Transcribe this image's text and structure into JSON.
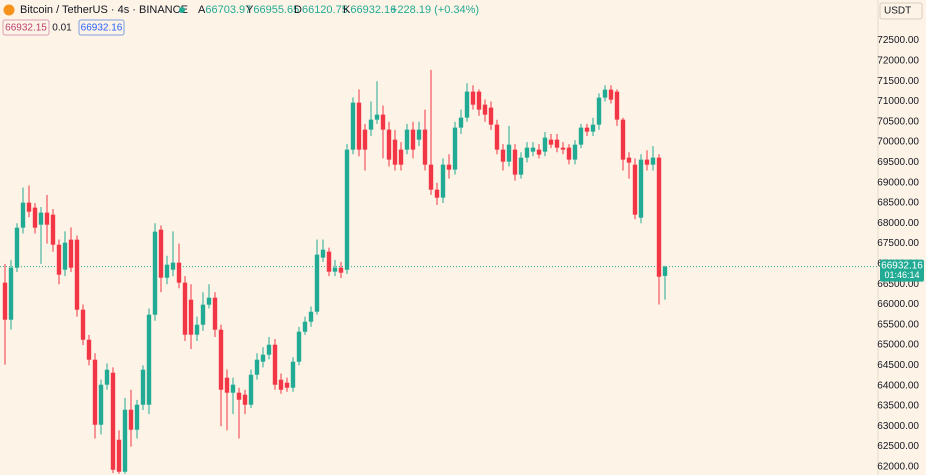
{
  "chart_data": {
    "type": "candlestick",
    "header": {
      "symbol": "Bitcoin / TetherUS · 4s · BINANCE",
      "open_label": "A",
      "high_label": "Y",
      "low_label": "D",
      "close_label": "K",
      "change": "+228.19 (+0.34%)"
    },
    "order_panel": {
      "sell": "66932.15",
      "spread": "0.01",
      "buy": "66932.16"
    },
    "currency": "USDT",
    "countdown": "01:46:14",
    "up_color": "#22ab94",
    "down_color": "#f23645",
    "last_price_line": true,
    "grid": false,
    "ylim": [
      61800,
      73500
    ],
    "yticks": [
      {
        "value": 62000,
        "label": "62000.00"
      },
      {
        "value": 62500,
        "label": "62500.00"
      },
      {
        "value": 63000,
        "label": "63000.00"
      },
      {
        "value": 63500,
        "label": "63500.00"
      },
      {
        "value": 64000,
        "label": "64000.00"
      },
      {
        "value": 64500,
        "label": "64500.00"
      },
      {
        "value": 65000,
        "label": "65000.00"
      },
      {
        "value": 65500,
        "label": "65500.00"
      },
      {
        "value": 66000,
        "label": "66000.00"
      },
      {
        "value": 66500,
        "label": "66500.00"
      },
      {
        "value": 67000,
        "label": "67000.00"
      },
      {
        "value": 67500,
        "label": "67500.00"
      },
      {
        "value": 68000,
        "label": "68000.00"
      },
      {
        "value": 68500,
        "label": "68500.00"
      },
      {
        "value": 69000,
        "label": "69000.00"
      },
      {
        "value": 69500,
        "label": "69500.00"
      },
      {
        "value": 70000,
        "label": "70000.00"
      },
      {
        "value": 70500,
        "label": "70500.00"
      },
      {
        "value": 71000,
        "label": "71000.00"
      },
      {
        "value": 71500,
        "label": "71500.00"
      },
      {
        "value": 72000,
        "label": "72000.00"
      },
      {
        "value": 72500,
        "label": "72500.00"
      }
    ],
    "open": [
      66537,
      65625,
      66906,
      67892,
      68508,
      68385,
      67966,
      68262,
      68212,
      67473,
      66857,
      67596,
      67596,
      65872,
      65132,
      64640,
      63038,
      64024,
      64319,
      62668,
      61880,
      63408,
      62915,
      63531,
      63531,
      65748,
      67843,
      66660,
      66857,
      67030,
      66537,
      66118,
      65256,
      65502,
      65995,
      66167,
      65379,
      64196,
      63827,
      63827,
      63778,
      63531,
      64270,
      64590,
      64763,
      65009,
      64147,
      64073,
      63950,
      64590,
      65329,
      65576,
      65822,
      67153,
      67301,
      66808,
      66906,
      66857,
      69814,
      70972,
      70307,
      70307,
      70553,
      70676,
      70307,
      70060,
      69814,
      69814,
      70307,
      70060,
      70307,
      69444,
      68828,
      68631,
      69444,
      69321,
      70356,
      70602,
      71243,
      71243,
      70922,
      70849,
      70430,
      69814,
      69518,
      69814,
      69198,
      69617,
      69765,
      69814,
      69765,
      70060,
      70060,
      69863,
      69863,
      69568,
      69937,
      70356,
      70258,
      70430,
      71095,
      71292,
      71243,
      70553,
      69617,
      69444,
      68138,
      69568,
      69444,
      69617,
      66703.97
    ],
    "high": [
      67000,
      67100,
      68000,
      68880,
      68930,
      68500,
      68400,
      68700,
      68350,
      67600,
      67800,
      67900,
      67700,
      66000,
      65250,
      64800,
      64150,
      64550,
      64450,
      62900,
      63700,
      63900,
      63650,
      64500,
      65900,
      68000,
      67950,
      67200,
      67800,
      67500,
      66700,
      66500,
      65700,
      66300,
      66500,
      66300,
      65500,
      64400,
      64200,
      63950,
      63900,
      64400,
      64800,
      64950,
      65200,
      65150,
      64300,
      64200,
      64700,
      65450,
      65700,
      65950,
      67600,
      67600,
      67400,
      67100,
      67050,
      69950,
      71100,
      71300,
      70450,
      71000,
      71500,
      70900,
      70500,
      70300,
      70000,
      70450,
      70500,
      70500,
      70800,
      71780,
      69000,
      69600,
      69700,
      70500,
      70800,
      71450,
      71400,
      71300,
      71050,
      71000,
      70550,
      69950,
      70400,
      69950,
      69750,
      70000,
      70000,
      69950,
      70250,
      70200,
      70200,
      70000,
      69950,
      70050,
      70450,
      70450,
      70600,
      71200,
      71400,
      71400,
      71300,
      70600,
      69750,
      69600,
      69700,
      69800,
      69900,
      69700,
      66955.65
    ],
    "low": [
      64520,
      65380,
      66800,
      67750,
      68150,
      67750,
      67000,
      67500,
      67300,
      66500,
      66700,
      66800,
      65700,
      65000,
      64500,
      62700,
      62800,
      63900,
      61850,
      61830,
      61830,
      62500,
      62700,
      63400,
      63300,
      65600,
      66300,
      66500,
      66700,
      66400,
      65100,
      64900,
      65100,
      65350,
      65900,
      65200,
      63000,
      62900,
      63300,
      62700,
      63300,
      63450,
      64150,
      64450,
      64650,
      63900,
      63800,
      63850,
      63850,
      64500,
      65250,
      65450,
      65750,
      67050,
      66700,
      66700,
      66650,
      66750,
      69700,
      69650,
      69300,
      70150,
      70450,
      69600,
      69400,
      69300,
      69300,
      69700,
      69600,
      69900,
      69300,
      68700,
      68450,
      68500,
      69100,
      69200,
      70200,
      70500,
      70800,
      70650,
      70500,
      70300,
      69700,
      69300,
      69400,
      69050,
      69100,
      69500,
      69650,
      69600,
      69650,
      69850,
      69750,
      69700,
      69450,
      69450,
      69850,
      70150,
      70150,
      70300,
      71000,
      70950,
      70400,
      69300,
      69100,
      68100,
      68000,
      69300,
      69300,
      66000,
      66120.75
    ],
    "close": [
      65625,
      66906,
      67892,
      68508,
      68286,
      67892,
      68262,
      67966,
      67473,
      66734,
      67522,
      66906,
      65872,
      65132,
      64640,
      63038,
      64024,
      64393,
      61929,
      61880,
      63408,
      62915,
      63531,
      64393,
      65748,
      67794,
      66660,
      66980,
      67030,
      66537,
      65256,
      65256,
      65502,
      65995,
      66167,
      65379,
      63900,
      63827,
      64024,
      63654,
      63531,
      64270,
      64640,
      64763,
      65009,
      64024,
      63900,
      63950,
      64590,
      65329,
      65576,
      65822,
      67227,
      67350,
      66808,
      66906,
      66783,
      69814,
      70972,
      69814,
      69814,
      70553,
      70676,
      70307,
      69568,
      69444,
      69444,
      70307,
      69814,
      70307,
      69444,
      68828,
      68631,
      69444,
      69321,
      70356,
      70602,
      71243,
      70922,
      70800,
      70676,
      70430,
      69814,
      69518,
      69937,
      69198,
      69617,
      69863,
      69863,
      69691,
      70110,
      69937,
      69863,
      69814,
      69568,
      69937,
      70356,
      70258,
      70430,
      71095,
      71292,
      71046,
      70553,
      69568,
      69494,
      68212,
      69568,
      69444,
      69617,
      66684,
      66932.16
    ]
  }
}
